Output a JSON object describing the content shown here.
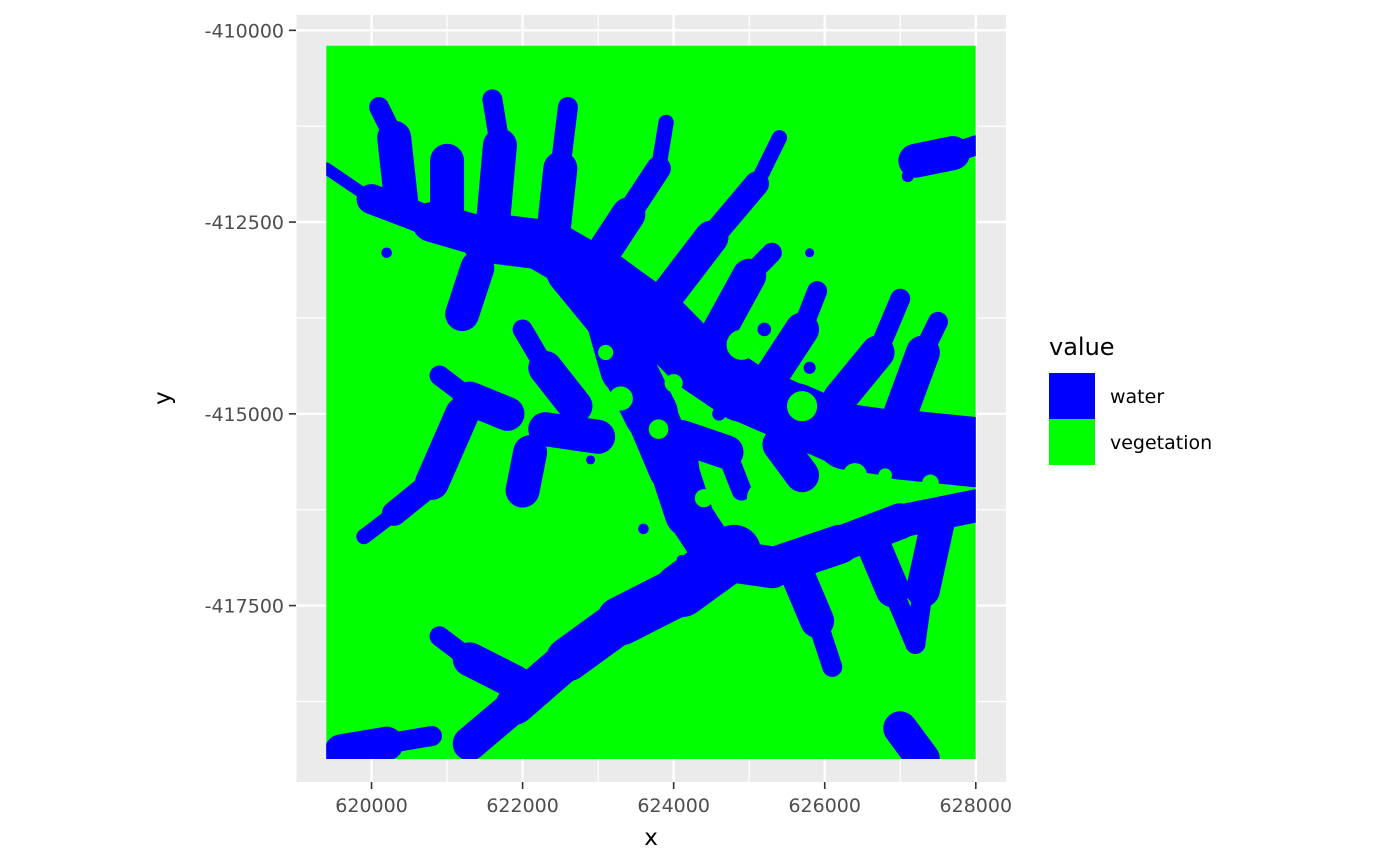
{
  "chart_data": {
    "type": "heatmap",
    "subtype": "categorical raster map",
    "xlabel": "x",
    "ylabel": "y",
    "xlim": [
      619000,
      628400
    ],
    "ylim": [
      -419800,
      -409800
    ],
    "raster_extent": {
      "xmin": 619400,
      "xmax": 628000,
      "ymin": -419500,
      "ymax": -410200
    },
    "x_ticks": [
      620000,
      622000,
      624000,
      626000,
      628000
    ],
    "x_tick_labels": [
      "620000",
      "622000",
      "624000",
      "626000",
      "628000"
    ],
    "y_ticks": [
      -410000,
      -412500,
      -415000,
      -417500
    ],
    "y_tick_labels": [
      "-410000",
      "-412500",
      "-415000",
      "-417500"
    ],
    "grid": true,
    "panel_background": "#ebebeb",
    "legend": {
      "title": "value",
      "position": "right",
      "entries": [
        {
          "label": "water",
          "color": "#0000ff"
        },
        {
          "label": "vegetation",
          "color": "#00ff00"
        }
      ]
    },
    "water_channels": [
      [
        [
          619400,
          -411800
        ],
        [
          620000,
          -412200
        ],
        [
          620800,
          -412500
        ],
        [
          621500,
          -412700
        ],
        [
          622300,
          -412800
        ],
        [
          623000,
          -413200
        ],
        [
          623700,
          -413700
        ],
        [
          624300,
          -414300
        ],
        [
          624900,
          -414700
        ],
        [
          625600,
          -415000
        ],
        [
          626300,
          -415300
        ],
        [
          627000,
          -415400
        ],
        [
          628000,
          -415500
        ]
      ],
      [
        [
          622700,
          -413100
        ],
        [
          623200,
          -413700
        ],
        [
          623400,
          -414400
        ],
        [
          623700,
          -415000
        ],
        [
          624000,
          -415700
        ],
        [
          624200,
          -416300
        ],
        [
          624600,
          -416900
        ],
        [
          625300,
          -417000
        ],
        [
          626200,
          -416700
        ],
        [
          627000,
          -416400
        ],
        [
          628000,
          -416200
        ]
      ],
      [
        [
          624800,
          -416800
        ],
        [
          624100,
          -417300
        ],
        [
          623300,
          -417700
        ],
        [
          622600,
          -418200
        ],
        [
          621900,
          -418800
        ],
        [
          621300,
          -419300
        ]
      ],
      [
        [
          621900,
          -418500
        ],
        [
          621300,
          -418200
        ],
        [
          620900,
          -417900
        ]
      ],
      [
        [
          619600,
          -419400
        ],
        [
          620200,
          -419300
        ],
        [
          620800,
          -419200
        ]
      ],
      [
        [
          621400,
          -413100
        ],
        [
          621200,
          -413700
        ]
      ],
      [
        [
          622700,
          -414900
        ],
        [
          622300,
          -414400
        ],
        [
          622000,
          -413900
        ]
      ],
      [
        [
          621800,
          -415000
        ],
        [
          621300,
          -414800
        ],
        [
          620900,
          -414500
        ]
      ],
      [
        [
          621200,
          -415000
        ],
        [
          620800,
          -415900
        ],
        [
          620300,
          -416300
        ],
        [
          619900,
          -416600
        ]
      ],
      [
        [
          622100,
          -415500
        ],
        [
          622000,
          -416000
        ]
      ],
      [
        [
          623000,
          -415300
        ],
        [
          622300,
          -415200
        ]
      ],
      [
        [
          624100,
          -415300
        ],
        [
          624700,
          -415500
        ],
        [
          624900,
          -416000
        ]
      ],
      [
        [
          625400,
          -415400
        ],
        [
          625700,
          -415800
        ]
      ],
      [
        [
          620400,
          -412300
        ],
        [
          620300,
          -411400
        ],
        [
          620100,
          -411000
        ]
      ],
      [
        [
          621000,
          -412400
        ],
        [
          621000,
          -411700
        ]
      ],
      [
        [
          621600,
          -412600
        ],
        [
          621700,
          -411500
        ],
        [
          621600,
          -410900
        ]
      ],
      [
        [
          622400,
          -412700
        ],
        [
          622500,
          -411800
        ],
        [
          622600,
          -411000
        ]
      ],
      [
        [
          623000,
          -413000
        ],
        [
          623400,
          -412400
        ],
        [
          623800,
          -411800
        ],
        [
          623900,
          -411200
        ]
      ],
      [
        [
          623800,
          -413600
        ],
        [
          624500,
          -412700
        ],
        [
          625100,
          -412000
        ],
        [
          625400,
          -411400
        ]
      ],
      [
        [
          624500,
          -414100
        ],
        [
          625000,
          -413200
        ],
        [
          625300,
          -412900
        ]
      ],
      [
        [
          625300,
          -414500
        ],
        [
          625700,
          -413900
        ],
        [
          625900,
          -413400
        ]
      ],
      [
        [
          626200,
          -414800
        ],
        [
          626700,
          -414200
        ],
        [
          627000,
          -413500
        ]
      ],
      [
        [
          627000,
          -415000
        ],
        [
          627300,
          -414200
        ],
        [
          627500,
          -413800
        ]
      ],
      [
        [
          627200,
          -411700
        ],
        [
          627700,
          -411600
        ],
        [
          628000,
          -411500
        ]
      ],
      [
        [
          625600,
          -417000
        ],
        [
          625900,
          -417700
        ],
        [
          626100,
          -418300
        ]
      ],
      [
        [
          626600,
          -416600
        ],
        [
          626900,
          -417300
        ],
        [
          627200,
          -418000
        ]
      ],
      [
        [
          627500,
          -416400
        ],
        [
          627300,
          -417300
        ],
        [
          627200,
          -418000
        ]
      ],
      [
        [
          627300,
          -419500
        ],
        [
          627000,
          -419100
        ]
      ]
    ],
    "water_blobs": [
      [
        621400,
        -413300,
        110
      ],
      [
        622900,
        -415600,
        60
      ],
      [
        625200,
        -413900,
        90
      ],
      [
        625800,
        -414400,
        80
      ],
      [
        624600,
        -415000,
        90
      ],
      [
        627100,
        -411900,
        80
      ],
      [
        620200,
        -412900,
        70
      ],
      [
        623600,
        -416500,
        70
      ],
      [
        624100,
        -416900,
        60
      ],
      [
        626400,
        -416700,
        80
      ],
      [
        625800,
        -412900,
        60
      ],
      [
        622400,
        -412400,
        50
      ]
    ],
    "vegetation_islands": [
      [
        623800,
        -415200,
        130
      ],
      [
        624400,
        -416100,
        120
      ],
      [
        625200,
        -416100,
        230
      ],
      [
        626400,
        -415800,
        160
      ],
      [
        623300,
        -414800,
        160
      ],
      [
        623100,
        -414200,
        100
      ],
      [
        624900,
        -414100,
        200
      ],
      [
        625700,
        -414900,
        200
      ],
      [
        624000,
        -414600,
        120
      ],
      [
        622700,
        -416500,
        140
      ],
      [
        626800,
        -415800,
        90
      ],
      [
        627400,
        -415900,
        110
      ]
    ]
  }
}
